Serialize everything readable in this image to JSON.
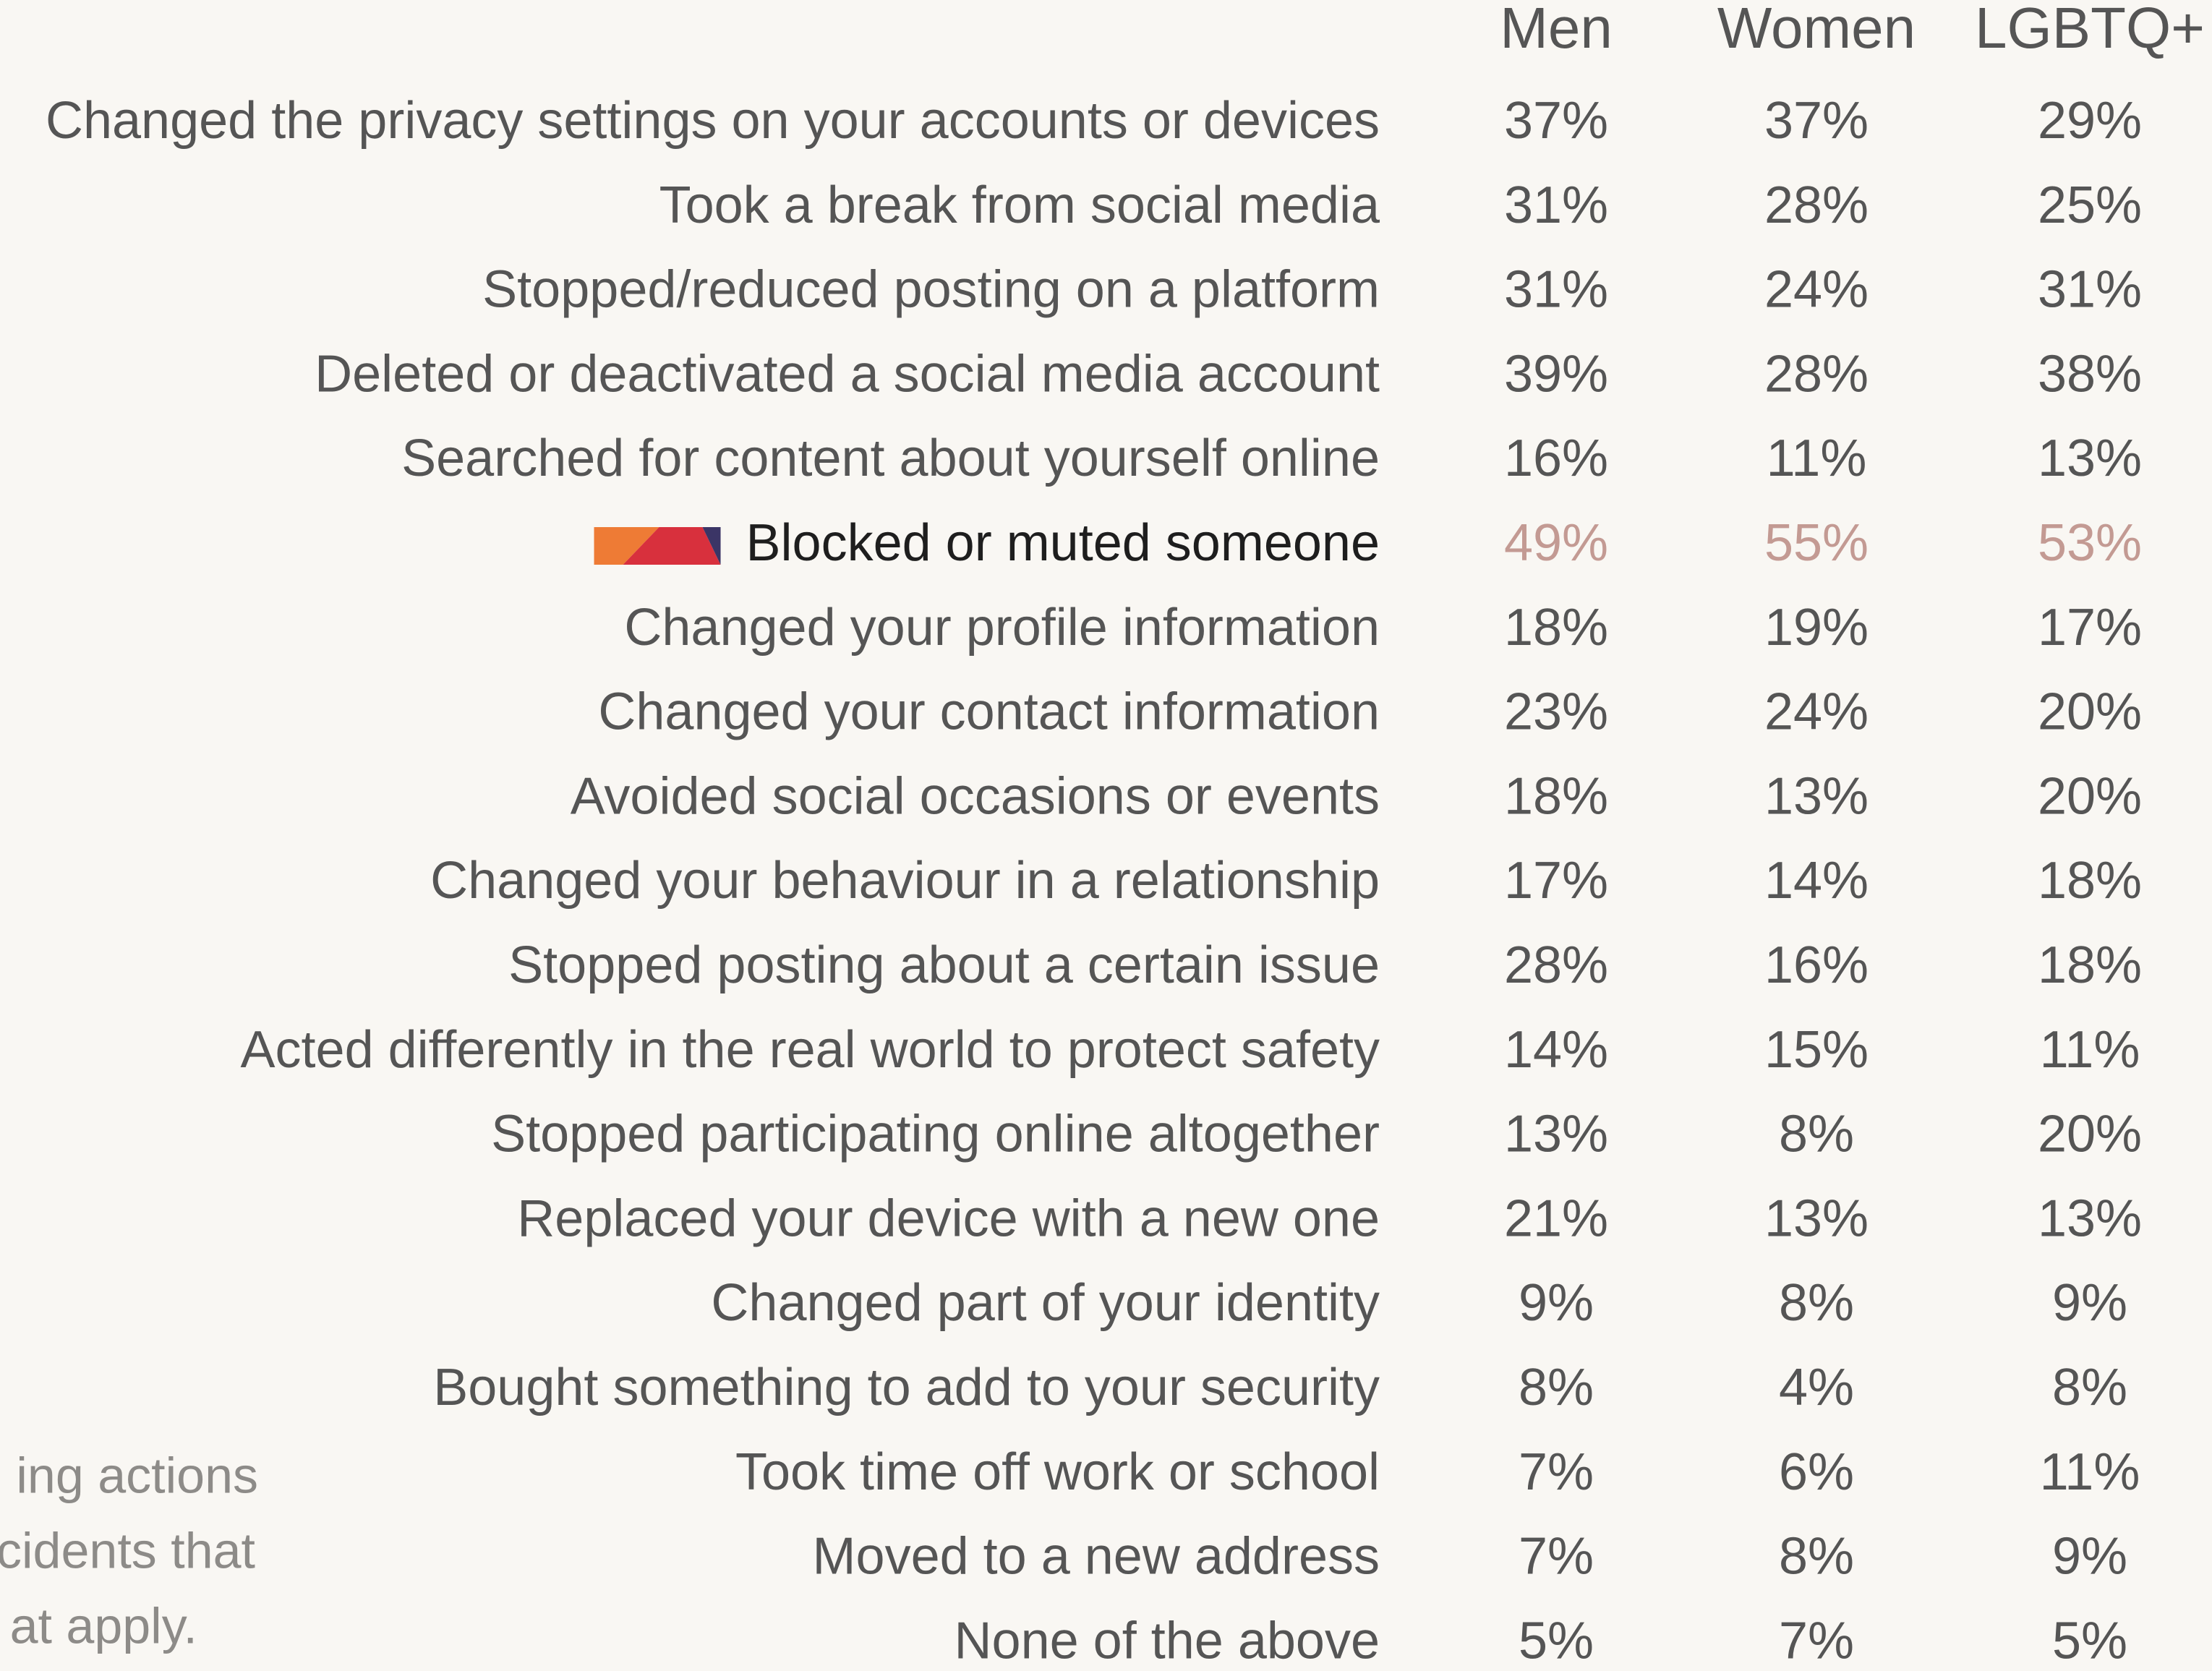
{
  "table": {
    "columns": [
      "Men",
      "Women",
      "LGBTQ+"
    ],
    "rows": [
      {
        "label": "Changed the privacy settings on your accounts or devices",
        "values": [
          "37%",
          "37%",
          "29%"
        ]
      },
      {
        "label": "Took a break from social media",
        "values": [
          "31%",
          "28%",
          "25%"
        ]
      },
      {
        "label": "Stopped/reduced posting on a platform",
        "values": [
          "31%",
          "24%",
          "31%"
        ]
      },
      {
        "label": "Deleted or deactivated a social media account",
        "values": [
          "39%",
          "28%",
          "38%"
        ]
      },
      {
        "label": "Searched for content about yourself online",
        "values": [
          "16%",
          "11%",
          "13%"
        ]
      },
      {
        "label": "Blocked or muted someone",
        "values": [
          "49%",
          "55%",
          "53%"
        ],
        "highlight": true
      },
      {
        "label": "Changed your profile information",
        "values": [
          "18%",
          "19%",
          "17%"
        ]
      },
      {
        "label": "Changed your contact information",
        "values": [
          "23%",
          "24%",
          "20%"
        ]
      },
      {
        "label": "Avoided social occasions or events",
        "values": [
          "18%",
          "13%",
          "20%"
        ]
      },
      {
        "label": "Changed your behaviour in a relationship",
        "values": [
          "17%",
          "14%",
          "18%"
        ]
      },
      {
        "label": "Stopped posting about a certain issue",
        "values": [
          "28%",
          "16%",
          "18%"
        ]
      },
      {
        "label": "Acted differently in the real world to protect safety",
        "values": [
          "14%",
          "15%",
          "11%"
        ]
      },
      {
        "label": "Stopped participating online altogether",
        "values": [
          "13%",
          "8%",
          "20%"
        ]
      },
      {
        "label": "Replaced your device with a new one",
        "values": [
          "21%",
          "13%",
          "13%"
        ]
      },
      {
        "label": "Changed part of your identity",
        "values": [
          "9%",
          "8%",
          "9%"
        ]
      },
      {
        "label": "Bought something to add to your security",
        "values": [
          "8%",
          "4%",
          "8%"
        ]
      },
      {
        "label": "Took time off work or school",
        "values": [
          "7%",
          "6%",
          "11%"
        ]
      },
      {
        "label": "Moved to a new address",
        "values": [
          "7%",
          "8%",
          "9%"
        ]
      },
      {
        "label": "None of the above",
        "values": [
          "5%",
          "7%",
          "5%"
        ]
      }
    ]
  },
  "note": [
    "ing actions",
    "cidents that",
    "at apply."
  ]
}
